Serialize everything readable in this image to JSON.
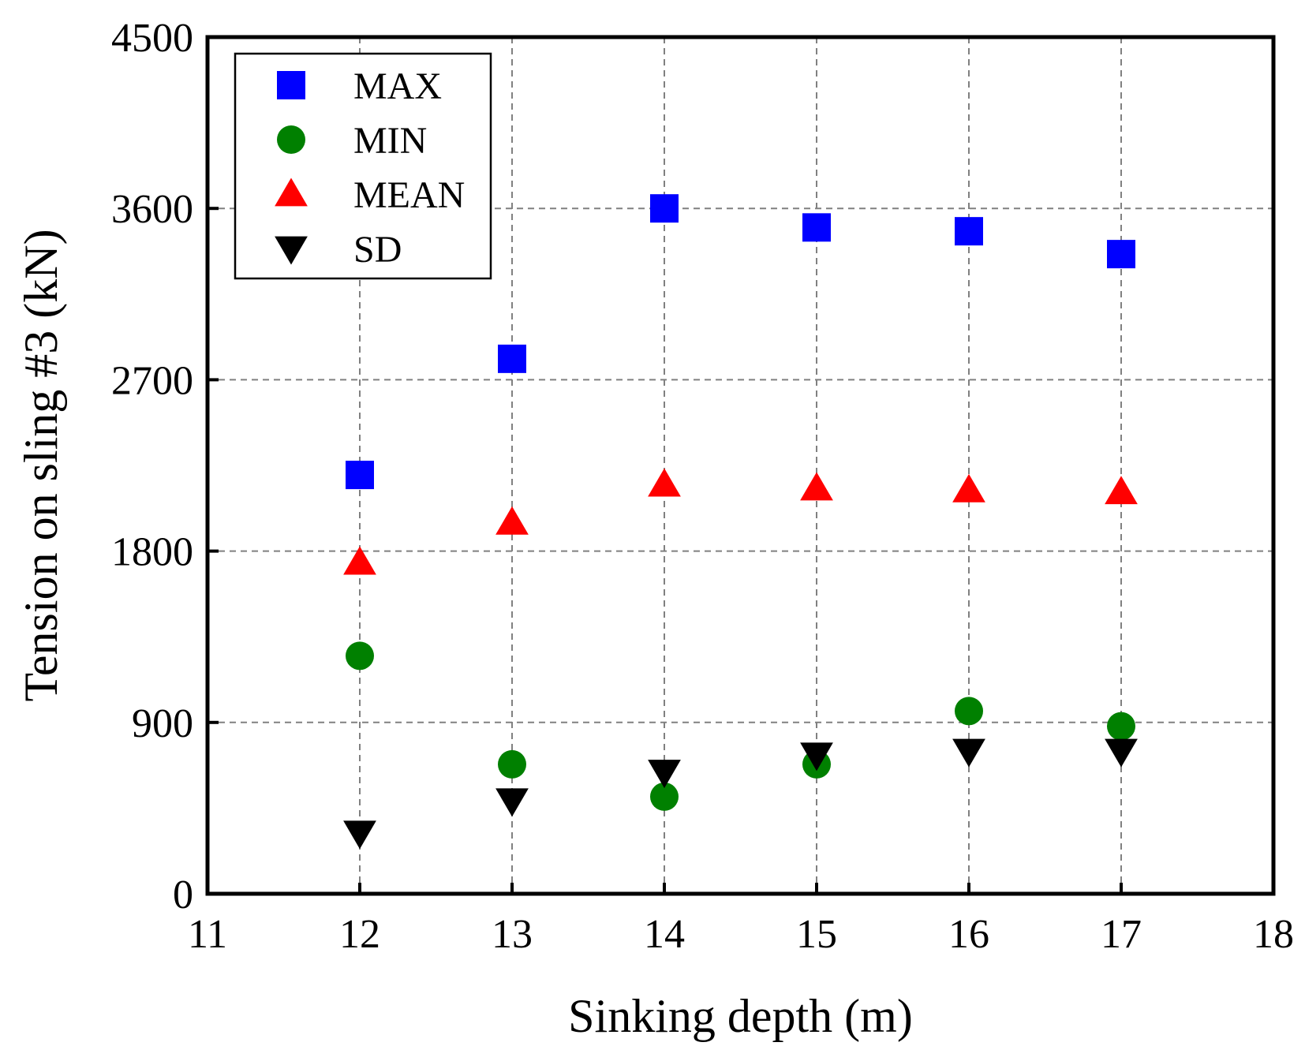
{
  "chart_data": {
    "type": "scatter",
    "xlabel": "Sinking depth (m)",
    "ylabel": "Tension on sling #3 (kN)",
    "xlim": [
      11,
      18
    ],
    "ylim": [
      0,
      4500
    ],
    "xticks": [
      11,
      12,
      13,
      14,
      15,
      16,
      17,
      18
    ],
    "yticks": [
      0,
      900,
      1800,
      2700,
      3600,
      4500
    ],
    "xtick_labels": [
      "11",
      "12",
      "13",
      "14",
      "15",
      "16",
      "17",
      "18"
    ],
    "ytick_labels": [
      "0",
      "900",
      "1800",
      "2700",
      "3600",
      "4500"
    ],
    "grid": true,
    "legend_position": "top-left",
    "x": [
      12,
      13,
      14,
      15,
      16,
      17
    ],
    "series": [
      {
        "name": "MAX",
        "marker": "square",
        "color": "#0000ff",
        "values": [
          2200,
          2810,
          3600,
          3500,
          3480,
          3360
        ]
      },
      {
        "name": "MIN",
        "marker": "circle",
        "color": "#008000",
        "values": [
          1250,
          680,
          510,
          680,
          960,
          880
        ]
      },
      {
        "name": "MEAN",
        "marker": "triangle-up",
        "color": "#ff0000",
        "values": [
          1740,
          1950,
          2150,
          2130,
          2120,
          2110
        ]
      },
      {
        "name": "SD",
        "marker": "triangle-down",
        "color": "#000000",
        "values": [
          320,
          490,
          640,
          730,
          750,
          750
        ]
      }
    ]
  }
}
